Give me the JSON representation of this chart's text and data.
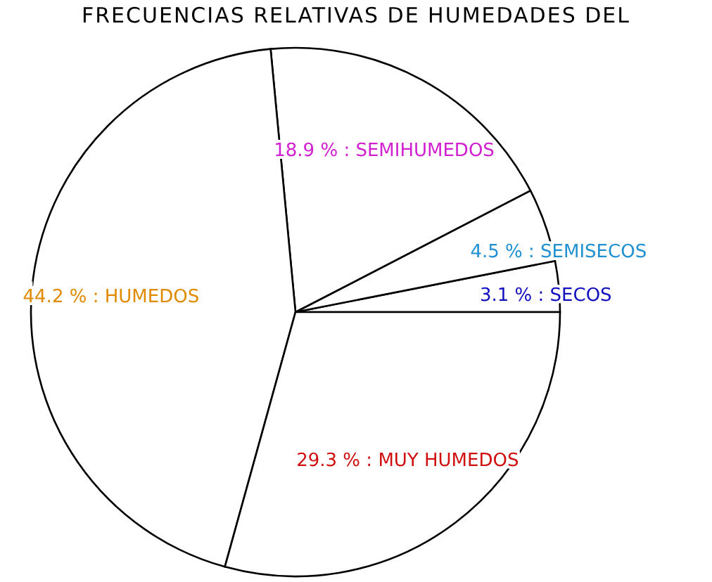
{
  "chart_data": {
    "type": "pie",
    "title": "FRECUENCIAS RELATIVAS DE HUMEDADES DEL",
    "categories": [
      "SECOS",
      "SEMISECOS",
      "SEMIHUMEDOS",
      "HUMEDOS",
      "MUY HUMEDOS"
    ],
    "values": [
      3.1,
      4.5,
      18.9,
      44.2,
      29.3
    ],
    "colors": [
      "#ffffff",
      "#ffffff",
      "#ffffff",
      "#ffffff",
      "#ffffff"
    ],
    "value_labels": [
      "3.1 % :",
      "4.5 % :",
      "18.9 % :",
      "44.2 % :",
      "29.3 % :"
    ],
    "legend": false
  }
}
